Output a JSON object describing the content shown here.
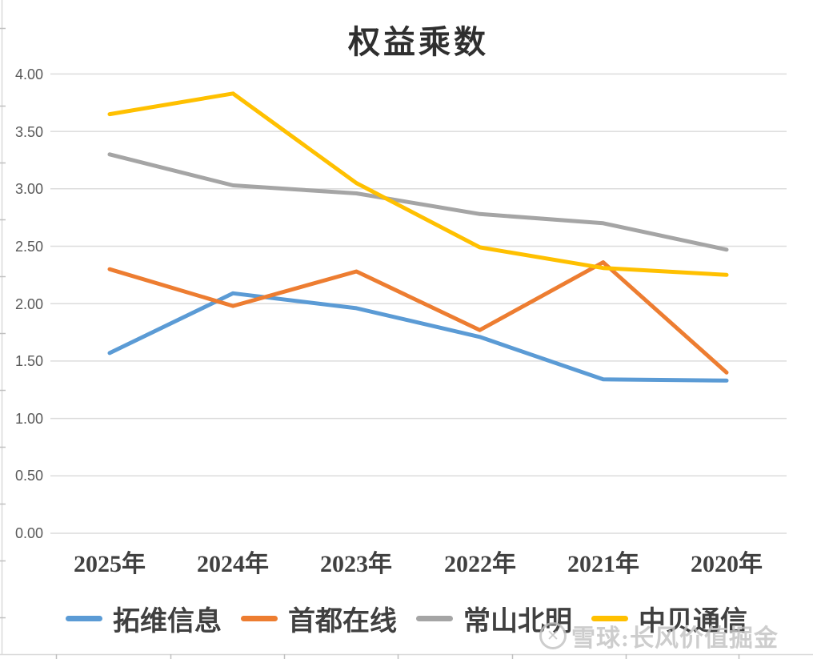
{
  "chart_data": {
    "type": "line",
    "title": "权益乘数",
    "categories": [
      "2025年",
      "2024年",
      "2023年",
      "2022年",
      "2021年",
      "2020年"
    ],
    "series": [
      {
        "name": "拓维信息",
        "color": "#5B9BD5",
        "values": [
          1.57,
          2.09,
          1.96,
          1.71,
          1.34,
          1.33
        ]
      },
      {
        "name": "首都在线",
        "color": "#ED7D31",
        "values": [
          2.3,
          1.98,
          2.28,
          1.77,
          2.36,
          1.4
        ]
      },
      {
        "name": "常山北明",
        "color": "#A5A5A5",
        "values": [
          3.3,
          3.03,
          2.96,
          2.78,
          2.7,
          2.47
        ]
      },
      {
        "name": "中贝通信",
        "color": "#FFC000",
        "values": [
          3.65,
          3.83,
          3.05,
          2.49,
          2.31,
          2.25
        ]
      }
    ],
    "ylim": [
      0,
      4
    ],
    "y_tick_step": 0.5,
    "y_tick_labels": [
      "4.00",
      "3.50",
      "3.00",
      "2.50",
      "2.00",
      "1.50",
      "1.00",
      "0.50",
      "0.00"
    ],
    "xlabel": "",
    "ylabel": "",
    "grid": "horizontal",
    "legend_position": "bottom"
  },
  "watermark": {
    "logo_icon": "xueqiu-logo-icon",
    "logo_glyph": "✕",
    "text": "雪球:长风价值掘金"
  },
  "colors": {
    "gridline": "#dcdcdc",
    "frame": "#d9d9d9",
    "tick": "#c0c0c0",
    "axis_text": "#595959",
    "category_text": "#404040",
    "title_text": "#2f2f2f",
    "watermark": "#c3c3c3"
  }
}
